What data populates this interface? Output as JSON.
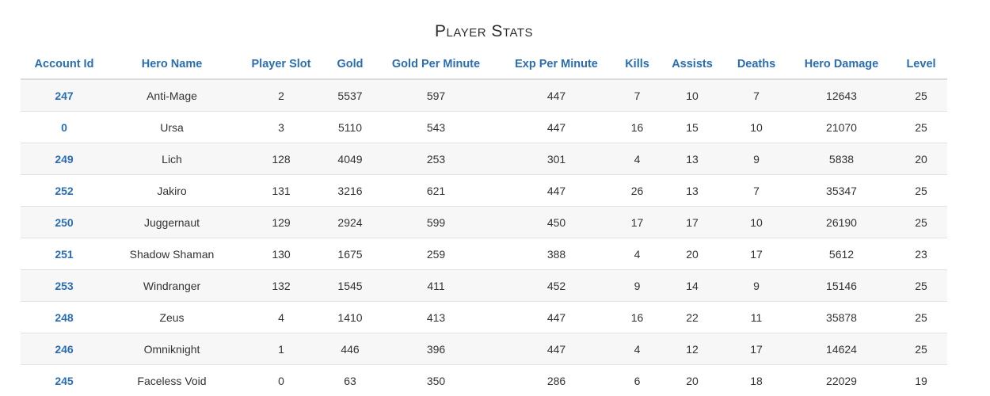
{
  "title": "Player Stats",
  "columns": [
    "Account Id",
    "Hero Name",
    "Player Slot",
    "Gold",
    "Gold Per Minute",
    "Exp Per Minute",
    "Kills",
    "Assists",
    "Deaths",
    "Hero Damage",
    "Level"
  ],
  "rows": [
    [
      "247",
      "Anti-Mage",
      "2",
      "5537",
      "597",
      "447",
      "7",
      "10",
      "7",
      "12643",
      "25"
    ],
    [
      "0",
      "Ursa",
      "3",
      "5110",
      "543",
      "447",
      "16",
      "15",
      "10",
      "21070",
      "25"
    ],
    [
      "249",
      "Lich",
      "128",
      "4049",
      "253",
      "301",
      "4",
      "13",
      "9",
      "5838",
      "20"
    ],
    [
      "252",
      "Jakiro",
      "131",
      "3216",
      "621",
      "447",
      "26",
      "13",
      "7",
      "35347",
      "25"
    ],
    [
      "250",
      "Juggernaut",
      "129",
      "2924",
      "599",
      "450",
      "17",
      "17",
      "10",
      "26190",
      "25"
    ],
    [
      "251",
      "Shadow Shaman",
      "130",
      "1675",
      "259",
      "388",
      "4",
      "20",
      "17",
      "5612",
      "23"
    ],
    [
      "253",
      "Windranger",
      "132",
      "1545",
      "411",
      "452",
      "9",
      "14",
      "9",
      "15146",
      "25"
    ],
    [
      "248",
      "Zeus",
      "4",
      "1410",
      "413",
      "447",
      "16",
      "22",
      "11",
      "35878",
      "25"
    ],
    [
      "246",
      "Omniknight",
      "1",
      "446",
      "396",
      "447",
      "4",
      "12",
      "17",
      "14624",
      "25"
    ],
    [
      "245",
      "Faceless Void",
      "0",
      "63",
      "350",
      "286",
      "6",
      "20",
      "18",
      "22029",
      "19"
    ]
  ]
}
